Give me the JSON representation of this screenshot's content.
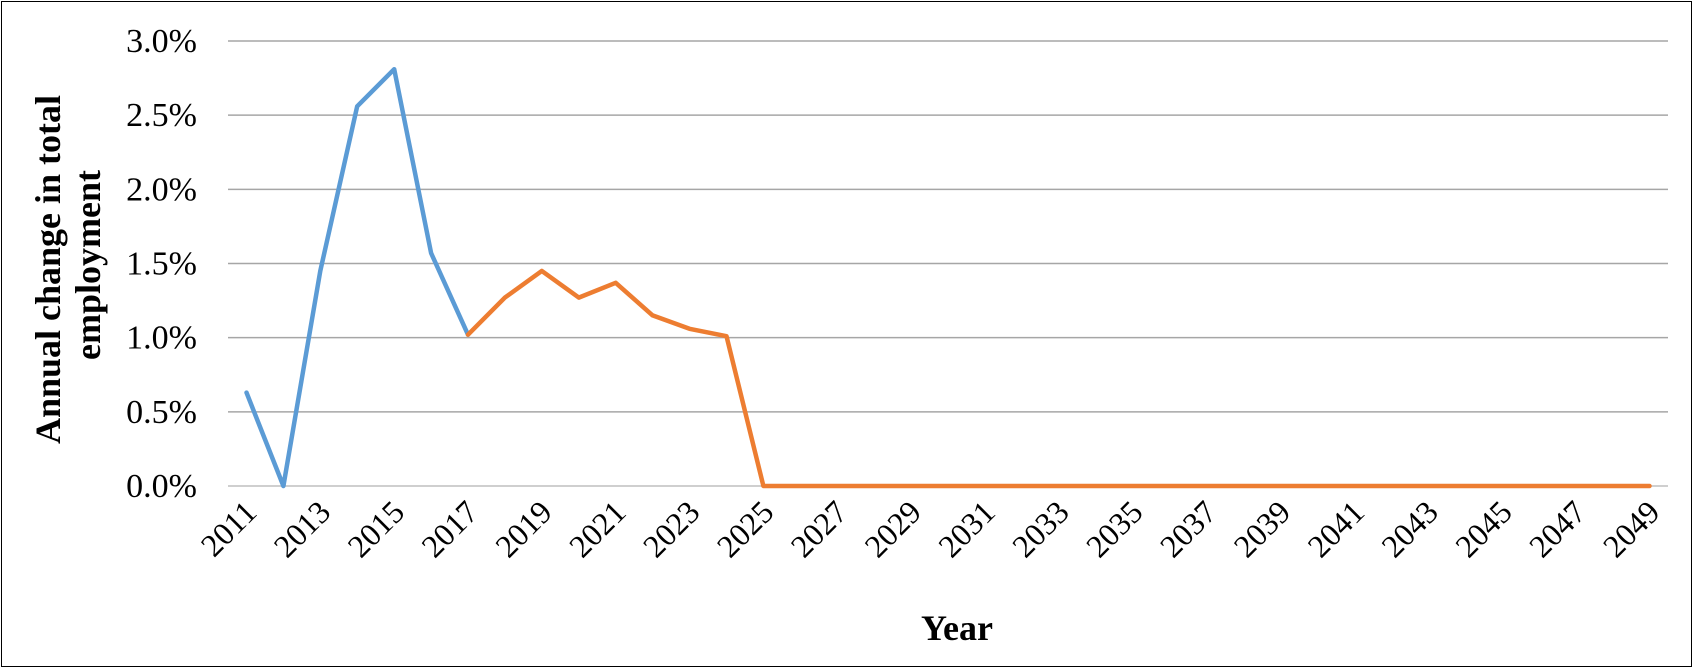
{
  "chart_data": {
    "type": "line",
    "xlabel": "Year",
    "ylabel": "Annual change in total employment",
    "ylabel_lines": [
      "Annual change in total",
      "employment"
    ],
    "x": [
      2011,
      2012,
      2013,
      2014,
      2015,
      2016,
      2017,
      2018,
      2019,
      2020,
      2021,
      2022,
      2023,
      2024,
      2025,
      2026,
      2027,
      2028,
      2029,
      2030,
      2031,
      2032,
      2033,
      2034,
      2035,
      2036,
      2037,
      2038,
      2039,
      2040,
      2041,
      2042,
      2043,
      2044,
      2045,
      2046,
      2047,
      2048,
      2049
    ],
    "xticks": [
      "2011",
      "2013",
      "2015",
      "2017",
      "2019",
      "2021",
      "2023",
      "2025",
      "2027",
      "2029",
      "2031",
      "2033",
      "2035",
      "2037",
      "2039",
      "2041",
      "2043",
      "2045",
      "2047",
      "2049"
    ],
    "ylim": [
      0,
      3.0
    ],
    "yticks": [
      0,
      0.5,
      1.0,
      1.5,
      2.0,
      2.5,
      3.0
    ],
    "ytick_labels": [
      "0.0%",
      "0.5%",
      "1.0%",
      "1.5%",
      "2.0%",
      "2.5%",
      "3.0%"
    ],
    "grid": true,
    "legend": "none",
    "series": [
      {
        "color": "#5b9bd5",
        "x": [
          2011,
          2012,
          2013,
          2014,
          2015,
          2016,
          2017
        ],
        "values": [
          0.63,
          0.0,
          1.45,
          2.56,
          2.81,
          1.57,
          1.02
        ]
      },
      {
        "color": "#ed7d31",
        "x": [
          2017,
          2018,
          2019,
          2020,
          2021,
          2022,
          2023,
          2024,
          2025,
          2026,
          2027,
          2028,
          2029,
          2030,
          2031,
          2032,
          2033,
          2034,
          2035,
          2036,
          2037,
          2038,
          2039,
          2040,
          2041,
          2042,
          2043,
          2044,
          2045,
          2046,
          2047,
          2048,
          2049
        ],
        "values": [
          1.02,
          1.27,
          1.45,
          1.27,
          1.37,
          1.15,
          1.06,
          1.01,
          0.0,
          0.0,
          0.0,
          0.0,
          0.0,
          0.0,
          0.0,
          0.0,
          0.0,
          0.0,
          0.0,
          0.0,
          0.0,
          0.0,
          0.0,
          0.0,
          0.0,
          0.0,
          0.0,
          0.0,
          0.0,
          0.0,
          0.0,
          0.0,
          0.0
        ]
      }
    ]
  }
}
